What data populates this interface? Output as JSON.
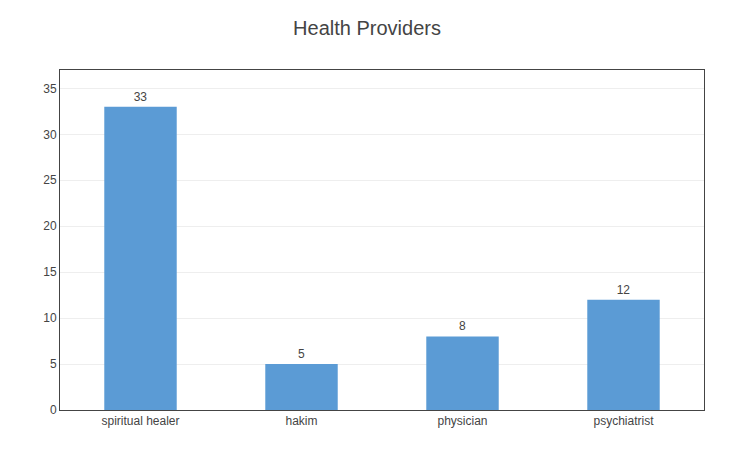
{
  "chart_data": {
    "type": "bar",
    "title": "Health Providers",
    "categories": [
      "spiritual healer",
      "hakim",
      "physician",
      "psychiatrist"
    ],
    "values": [
      33,
      5,
      8,
      12
    ],
    "color": "#5b9bd5",
    "ylim": [
      0,
      37
    ],
    "yticks": [
      0,
      5,
      10,
      15,
      20,
      25,
      30,
      35
    ],
    "grid": true,
    "data_labels": true
  }
}
